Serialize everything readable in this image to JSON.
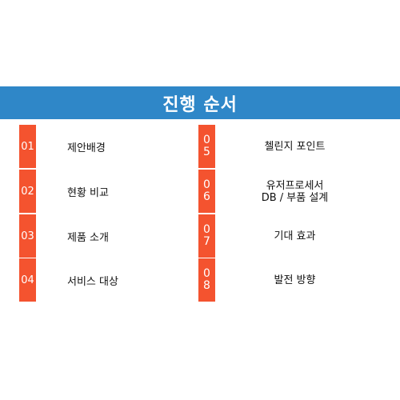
{
  "title": "진행 순서",
  "left_items": [
    {
      "number": "01",
      "label": "제안배경"
    },
    {
      "number": "02",
      "label": "현황 비교"
    },
    {
      "number": "03",
      "label": "제품 소개"
    },
    {
      "number": "04",
      "label": "서비스 대상"
    }
  ],
  "right_items": [
    {
      "digit1": "0",
      "digit2": "5",
      "label_line1": "첼린지 포인트",
      "label_line2": ""
    },
    {
      "digit1": "0",
      "digit2": "6",
      "label_line1": "유저프로세서",
      "label_line2": "DB / 부품 설계"
    },
    {
      "digit1": "0",
      "digit2": "7",
      "label_line1": "기대 효과",
      "label_line2": ""
    },
    {
      "digit1": "0",
      "digit2": "8",
      "label_line1": "발전 방향",
      "label_line2": ""
    }
  ],
  "colors": {
    "title_band": "#2f87c8",
    "number_box": "#f4532f",
    "text": "#111111"
  }
}
